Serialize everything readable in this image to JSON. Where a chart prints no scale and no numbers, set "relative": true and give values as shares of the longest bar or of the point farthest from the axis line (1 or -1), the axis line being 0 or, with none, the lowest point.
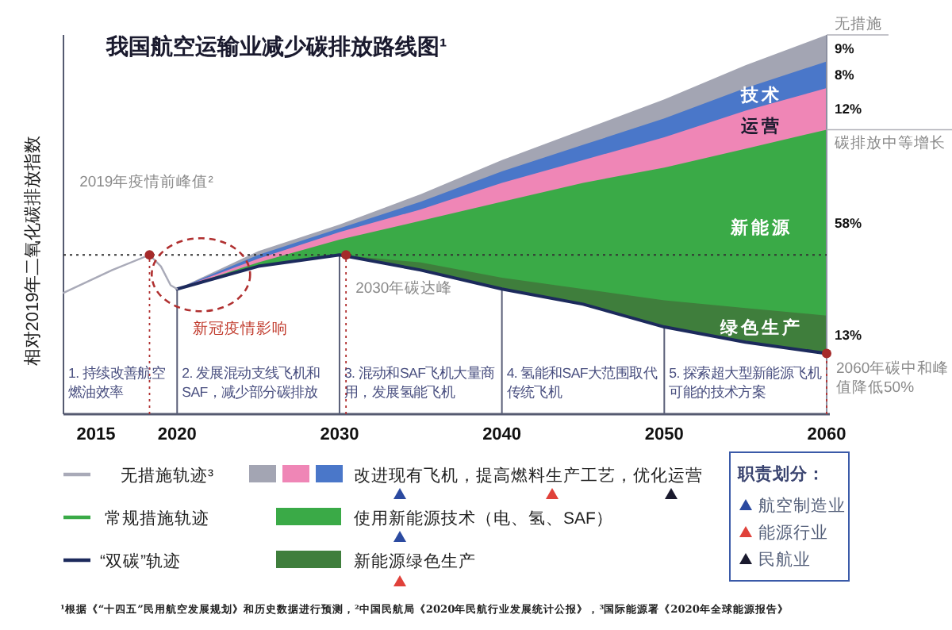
{
  "chart_data": {
    "type": "area",
    "title": "我国航空运输业减少碳排放路线图¹",
    "ylabel": "相对2019年二氧化碳排放指数",
    "relative": true,
    "line_style": "solid",
    "legend": "bottom",
    "x": [
      2020,
      2025,
      2030,
      2035,
      2040,
      2045,
      2050,
      2055,
      2060
    ],
    "xlim": [
      2013,
      2060
    ],
    "xticks": [
      2015,
      2020,
      2030,
      2040,
      2050,
      2060
    ],
    "series": [
      {
        "color": "#a3a5b3",
        "values": [
          0.33,
          0.43,
          0.5,
          0.58,
          0.67,
          0.75,
          0.83,
          0.92,
          1.0
        ]
      },
      {
        "name": "技术",
        "color": "#4a77c9",
        "values": [
          0.33,
          0.42,
          0.49,
          0.56,
          0.64,
          0.71,
          0.78,
          0.86,
          0.93
        ]
      },
      {
        "name": "运营",
        "color": "#ef86b6",
        "values": [
          0.33,
          0.41,
          0.48,
          0.54,
          0.61,
          0.67,
          0.73,
          0.8,
          0.86
        ]
      },
      {
        "name": "新能源",
        "color": "#3aaa47",
        "values": [
          0.33,
          0.4,
          0.46,
          0.51,
          0.56,
          0.61,
          0.65,
          0.7,
          0.75
        ]
      },
      {
        "name": "绿色生产",
        "color": "#3f7e3c",
        "values": [
          0.33,
          0.39,
          0.42,
          0.4,
          0.36,
          0.33,
          0.3,
          0.28,
          0.26
        ]
      },
      {
        "type": "line",
        "name": "“双碳”轨迹",
        "color": "#1c2a5c",
        "values": [
          0.33,
          0.39,
          0.42,
          0.38,
          0.33,
          0.29,
          0.23,
          0.19,
          0.16
        ]
      },
      {
        "type": "line",
        "name": "无措施轨迹³",
        "color": "#a9aab8",
        "x": [
          2013,
          2016,
          2018.3,
          2019,
          2019.6,
          2020
        ],
        "values": [
          0.32,
          0.38,
          0.42,
          0.39,
          0.34,
          0.33
        ]
      }
    ],
    "ref_lines": [
      {
        "axis": "x",
        "value": 2018.3,
        "color": "#b03030",
        "line_style": "dotted"
      },
      {
        "axis": "x",
        "value": 2030.4,
        "color": "#b03030",
        "line_style": "dotted"
      },
      {
        "axis": "x",
        "value": 2060,
        "color": "#b03030",
        "line_style": "dotted"
      },
      {
        "axis": "x",
        "value": 2020,
        "color": "#5a5f78"
      },
      {
        "axis": "x",
        "value": 2030,
        "color": "#5a5f78"
      },
      {
        "axis": "x",
        "value": 2040,
        "color": "#5a5f78"
      },
      {
        "axis": "x",
        "value": 2050,
        "color": "#5a5f78"
      },
      {
        "axis": "y",
        "value": 0.42,
        "color": "#333333",
        "line_style": "dotted"
      }
    ],
    "annotations": [
      "2019年疫情前峰值²",
      {
        "text": "新冠疫情影响",
        "x": 2020,
        "y": 0.33
      },
      {
        "text": "2030年碳达峰",
        "x": 2030.4,
        "y": 0.42
      },
      {
        "text": "2060年碳中和峰值降低50%",
        "x": 2060,
        "y": 0.16
      },
      "无措施",
      "9%",
      "8%",
      "12%",
      "碳排放中等增长",
      "58%",
      "13%",
      "1. 持续改善航空燃油效率",
      "2. 发展混动支线飞机和SAF，减少部分碳排放",
      "3. 混动和SAF飞机大量商用，发展氢能飞机",
      "4. 氢能和SAF大范围取代传统飞机",
      "5. 探索超大型新能源飞机可能的技术方案",
      "常规措施轨迹",
      "改进现有飞机，提高燃料生产工艺，优化运营",
      "使用新能源技术（电、氢、SAF）",
      "新能源绿色生产",
      "职责划分：",
      "航空制造业",
      "能源行业",
      "民航业",
      "¹根据《“十四五”民用航空发展规划》和历史数据进行预测，²中国民航局《2020年民航行业发展统计公报》，³国际能源署《2020年全球能源报告》"
    ]
  }
}
